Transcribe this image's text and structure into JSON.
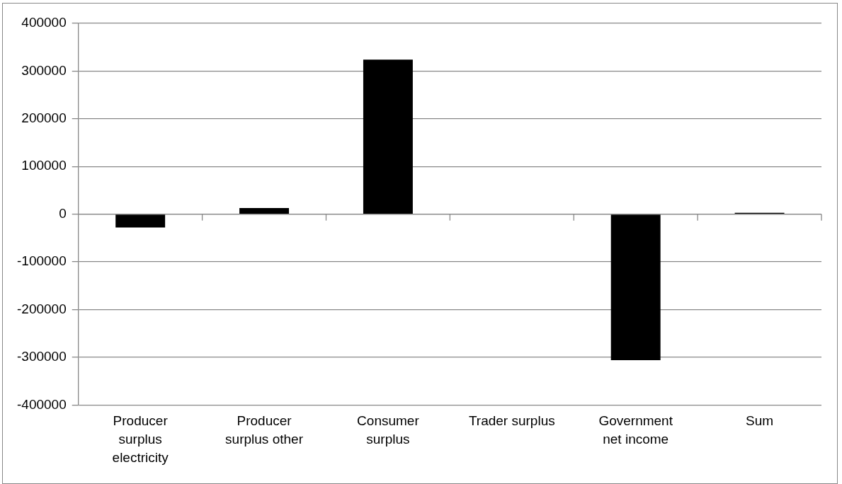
{
  "chart_data": {
    "type": "bar",
    "categories": [
      "Producer surplus electricity",
      "Producer surplus other",
      "Consumer surplus",
      "Trader surplus",
      "Government net income",
      "Sum"
    ],
    "values": [
      -28000,
      13000,
      324000,
      0,
      -306000,
      3000
    ],
    "color": "#000000",
    "ylim": [
      -400000,
      400000
    ],
    "yticks": [
      -400000,
      -300000,
      -200000,
      -100000,
      0,
      100000,
      200000,
      300000,
      400000
    ],
    "grid": "y",
    "legend": false
  }
}
